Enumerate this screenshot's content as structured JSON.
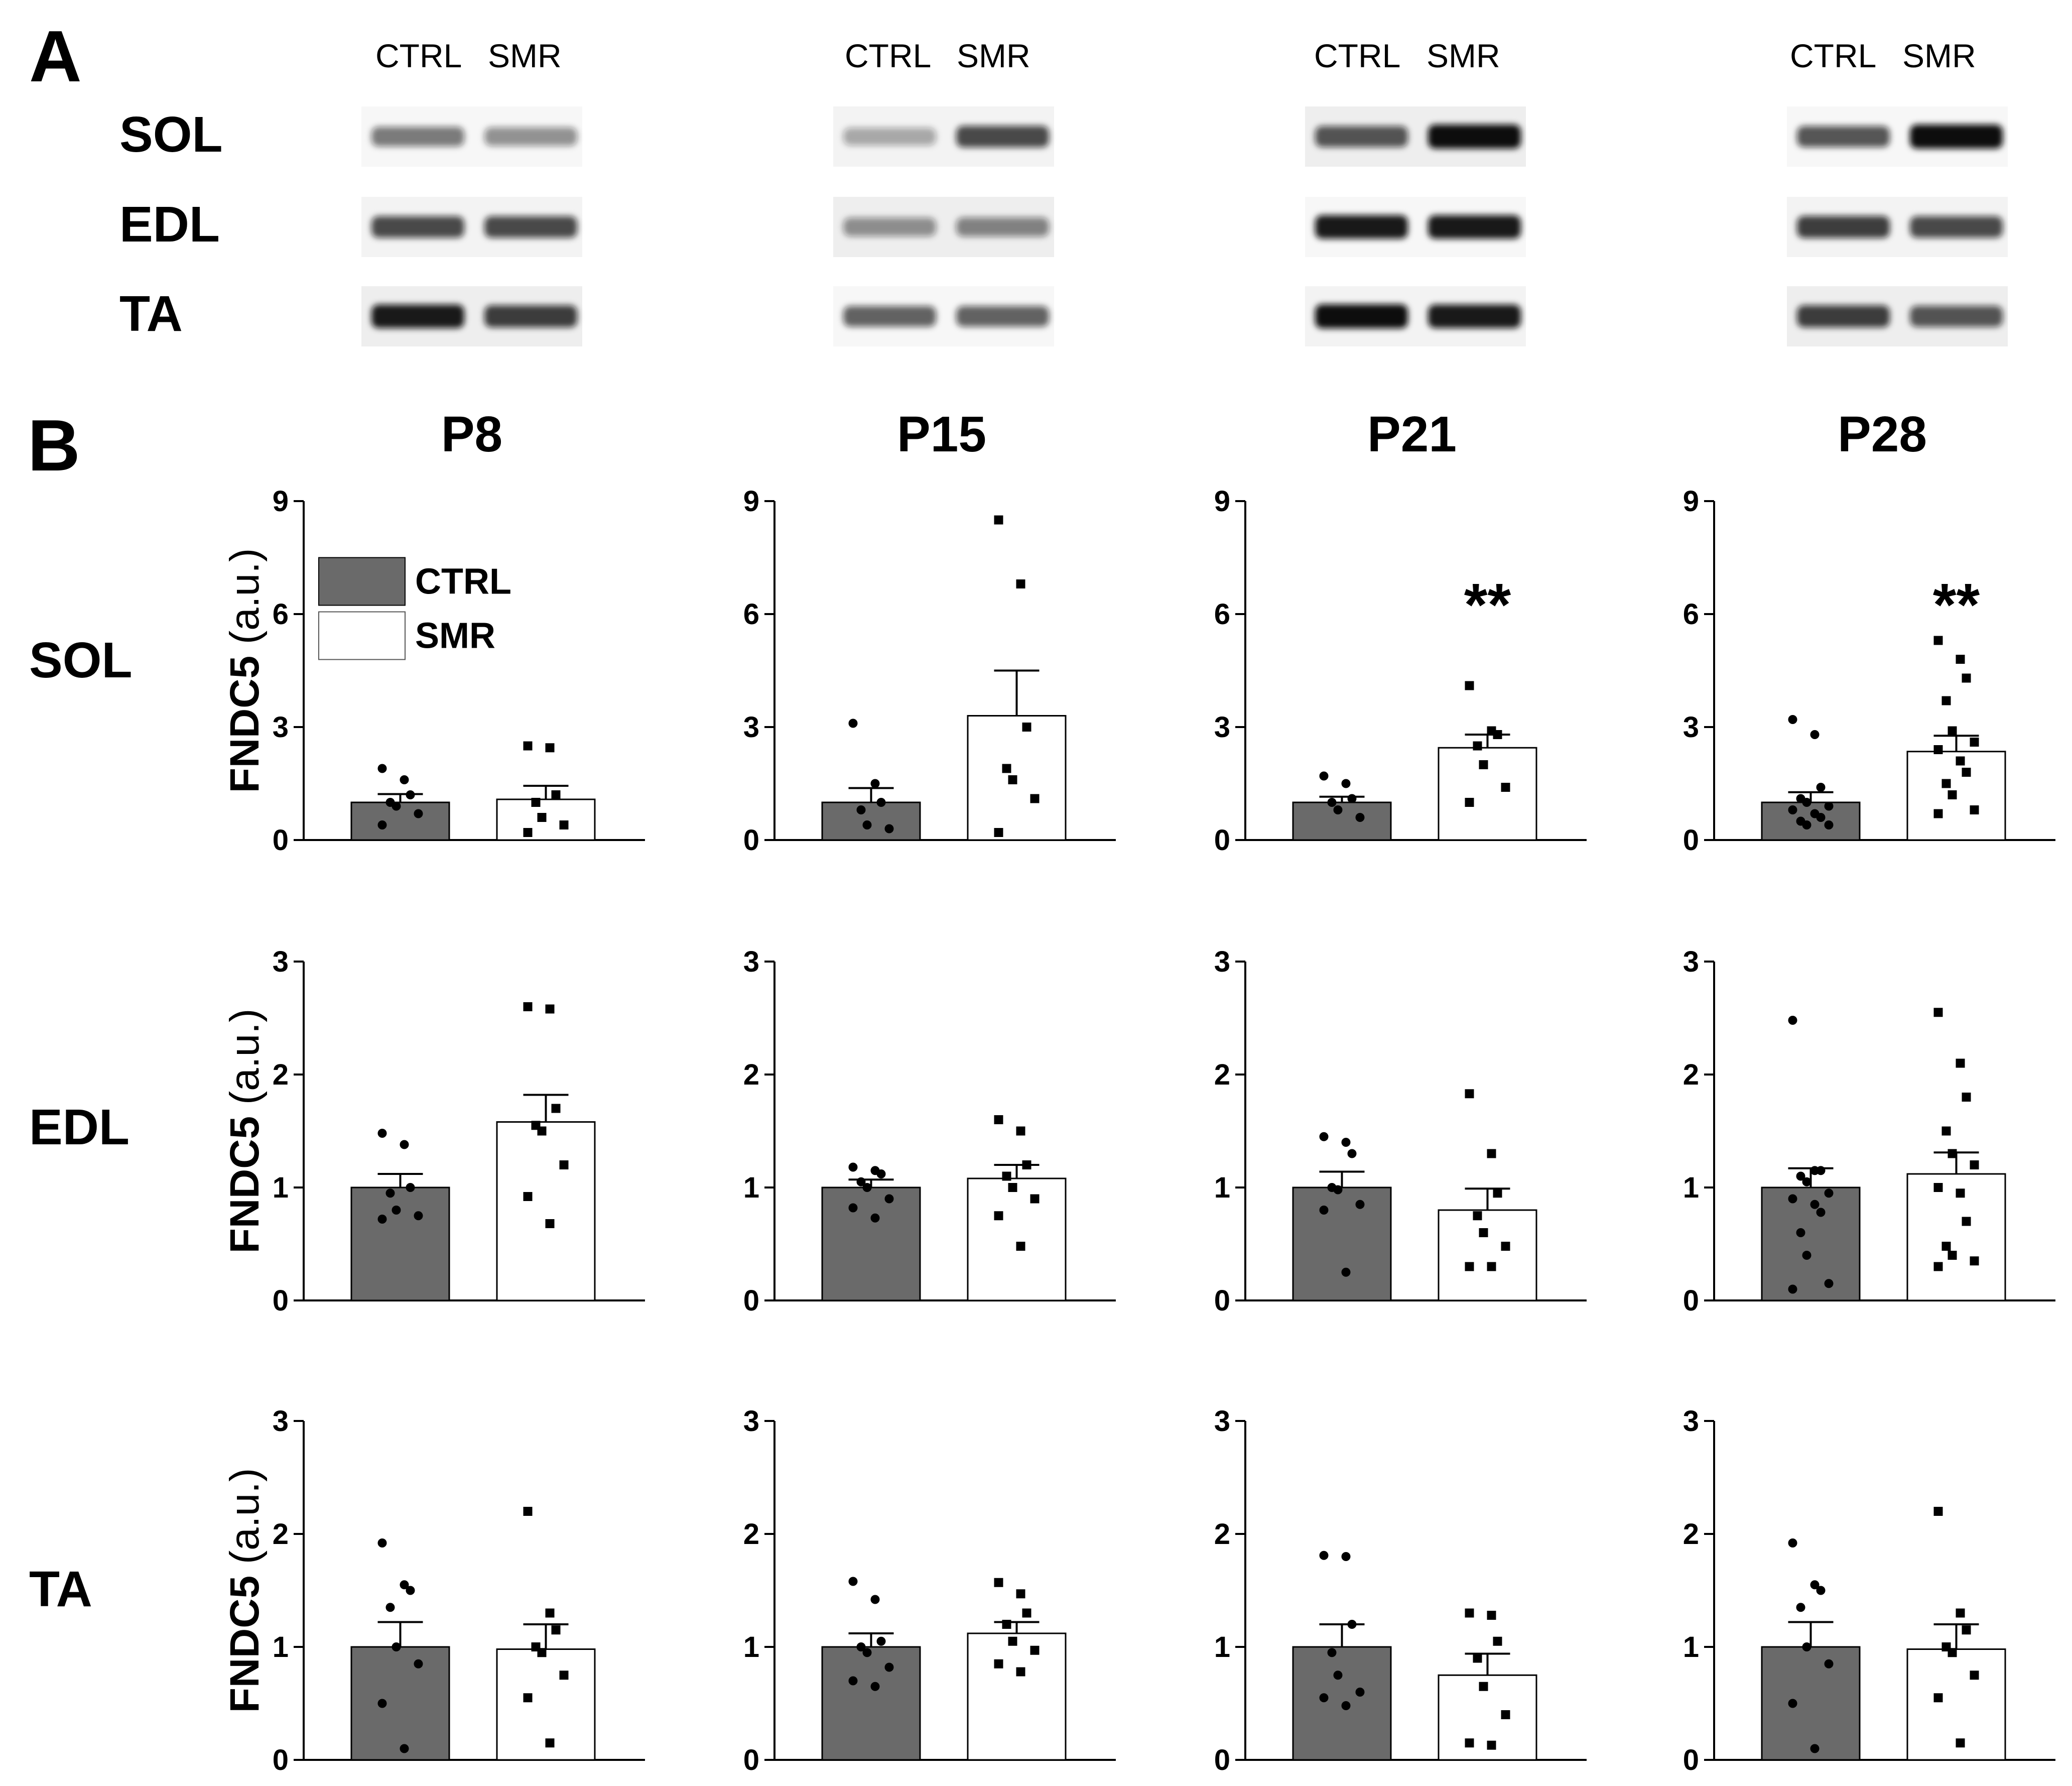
{
  "panel_labels": {
    "a": "A",
    "b": "B"
  },
  "western_blot": {
    "lane_labels": [
      "CTRL",
      "SMR"
    ],
    "muscle_rows": [
      "SOL",
      "EDL",
      "TA"
    ],
    "panels": [
      {
        "timepoint": "P8",
        "intensity": {
          "SOL": [
            0.55,
            0.45
          ],
          "EDL": [
            0.75,
            0.75
          ],
          "TA": [
            0.95,
            0.8
          ]
        }
      },
      {
        "timepoint": "P15",
        "intensity": {
          "SOL": [
            0.35,
            0.75
          ],
          "EDL": [
            0.45,
            0.5
          ],
          "TA": [
            0.65,
            0.65
          ]
        }
      },
      {
        "timepoint": "P21",
        "intensity": {
          "SOL": [
            0.7,
            1.0
          ],
          "EDL": [
            0.95,
            0.95
          ],
          "TA": [
            1.0,
            0.95
          ]
        }
      },
      {
        "timepoint": "P28",
        "intensity": {
          "SOL": [
            0.7,
            1.0
          ],
          "EDL": [
            0.8,
            0.75
          ],
          "TA": [
            0.8,
            0.7
          ]
        }
      }
    ]
  },
  "colors": {
    "ctrl_fill": "#6a6a6a",
    "smr_fill": "#ffffff",
    "axis": "#000000",
    "band": "#111111"
  },
  "chart_data": [
    {
      "type": "bar",
      "muscle": "SOL",
      "timepoint": "P8",
      "title": "P8",
      "ylabel": "FNDC5 (a.u.)",
      "ylim": [
        0,
        9
      ],
      "yticks": [
        0,
        3,
        6,
        9
      ],
      "categories": [
        "CTRL",
        "SMR"
      ],
      "series": [
        {
          "name": "CTRL",
          "mean": 1.0,
          "sem": 0.22,
          "points": [
            1.9,
            1.6,
            1.2,
            1.0,
            0.9,
            0.7,
            0.4
          ]
        },
        {
          "name": "SMR",
          "mean": 1.08,
          "sem": 0.36,
          "points": [
            2.5,
            2.45,
            1.2,
            1.0,
            0.6,
            0.4,
            0.2
          ]
        }
      ],
      "significance": "",
      "legend": [
        "CTRL",
        "SMR"
      ]
    },
    {
      "type": "bar",
      "muscle": "SOL",
      "timepoint": "P15",
      "title": "P15",
      "ylabel": "",
      "ylim": [
        0,
        9
      ],
      "yticks": [
        0,
        3,
        6,
        9
      ],
      "categories": [
        "CTRL",
        "SMR"
      ],
      "series": [
        {
          "name": "CTRL",
          "mean": 1.0,
          "sem": 0.38,
          "points": [
            3.1,
            1.5,
            1.0,
            0.8,
            0.4,
            0.3
          ]
        },
        {
          "name": "SMR",
          "mean": 3.3,
          "sem": 1.2,
          "points": [
            8.5,
            6.8,
            3.0,
            1.9,
            1.6,
            1.1,
            0.2
          ]
        }
      ],
      "significance": ""
    },
    {
      "type": "bar",
      "muscle": "SOL",
      "timepoint": "P21",
      "title": "P21",
      "ylabel": "",
      "ylim": [
        0,
        9
      ],
      "yticks": [
        0,
        3,
        6,
        9
      ],
      "categories": [
        "CTRL",
        "SMR"
      ],
      "series": [
        {
          "name": "CTRL",
          "mean": 1.0,
          "sem": 0.15,
          "points": [
            1.7,
            1.5,
            1.1,
            1.0,
            0.8,
            0.6
          ]
        },
        {
          "name": "SMR",
          "mean": 2.45,
          "sem": 0.35,
          "points": [
            4.1,
            2.9,
            2.8,
            2.5,
            2.0,
            1.4,
            1.0
          ]
        }
      ],
      "significance": "**"
    },
    {
      "type": "bar",
      "muscle": "SOL",
      "timepoint": "P28",
      "title": "P28",
      "ylabel": "",
      "ylim": [
        0,
        9
      ],
      "yticks": [
        0,
        3,
        6,
        9
      ],
      "categories": [
        "CTRL",
        "SMR"
      ],
      "series": [
        {
          "name": "CTRL",
          "mean": 1.0,
          "sem": 0.27,
          "points": [
            3.2,
            2.8,
            1.4,
            1.1,
            1.0,
            0.9,
            0.8,
            0.7,
            0.6,
            0.5,
            0.4,
            0.4
          ]
        },
        {
          "name": "SMR",
          "mean": 2.35,
          "sem": 0.42,
          "points": [
            5.3,
            4.8,
            4.3,
            3.7,
            2.9,
            2.6,
            2.4,
            2.1,
            1.8,
            1.5,
            1.2,
            0.8,
            0.7
          ]
        }
      ],
      "significance": "**"
    },
    {
      "type": "bar",
      "muscle": "EDL",
      "timepoint": "P8",
      "title": "",
      "ylabel": "FNDC5 (a.u.)",
      "ylim": [
        0,
        3
      ],
      "yticks": [
        0,
        1,
        2,
        3
      ],
      "categories": [
        "CTRL",
        "SMR"
      ],
      "series": [
        {
          "name": "CTRL",
          "mean": 1.0,
          "sem": 0.12,
          "points": [
            1.48,
            1.38,
            1.0,
            0.95,
            0.8,
            0.75,
            0.72
          ]
        },
        {
          "name": "SMR",
          "mean": 1.58,
          "sem": 0.24,
          "points": [
            2.6,
            2.58,
            1.7,
            1.55,
            1.5,
            1.2,
            0.92,
            0.68
          ]
        }
      ],
      "significance": ""
    },
    {
      "type": "bar",
      "muscle": "EDL",
      "timepoint": "P15",
      "title": "",
      "ylabel": "",
      "ylim": [
        0,
        3
      ],
      "yticks": [
        0,
        1,
        2,
        3
      ],
      "categories": [
        "CTRL",
        "SMR"
      ],
      "series": [
        {
          "name": "CTRL",
          "mean": 1.0,
          "sem": 0.07,
          "points": [
            1.18,
            1.15,
            1.12,
            1.05,
            1.0,
            0.9,
            0.82,
            0.73
          ]
        },
        {
          "name": "SMR",
          "mean": 1.08,
          "sem": 0.12,
          "points": [
            1.6,
            1.5,
            1.2,
            1.1,
            1.0,
            0.9,
            0.75,
            0.48
          ]
        }
      ],
      "significance": ""
    },
    {
      "type": "bar",
      "muscle": "EDL",
      "timepoint": "P21",
      "title": "",
      "ylabel": "",
      "ylim": [
        0,
        3
      ],
      "yticks": [
        0,
        1,
        2,
        3
      ],
      "categories": [
        "CTRL",
        "SMR"
      ],
      "series": [
        {
          "name": "CTRL",
          "mean": 1.0,
          "sem": 0.14,
          "points": [
            1.45,
            1.4,
            1.3,
            1.0,
            0.98,
            0.85,
            0.8,
            0.25
          ]
        },
        {
          "name": "SMR",
          "mean": 0.8,
          "sem": 0.19,
          "points": [
            1.83,
            1.3,
            0.95,
            0.75,
            0.6,
            0.48,
            0.3,
            0.3
          ]
        }
      ],
      "significance": ""
    },
    {
      "type": "bar",
      "muscle": "EDL",
      "timepoint": "P28",
      "title": "",
      "ylabel": "",
      "ylim": [
        0,
        3
      ],
      "yticks": [
        0,
        1,
        2,
        3
      ],
      "categories": [
        "CTRL",
        "SMR"
      ],
      "series": [
        {
          "name": "CTRL",
          "mean": 1.0,
          "sem": 0.17,
          "points": [
            2.48,
            1.15,
            1.15,
            1.1,
            1.05,
            0.95,
            0.9,
            0.85,
            0.78,
            0.6,
            0.4,
            0.15,
            0.1
          ]
        },
        {
          "name": "SMR",
          "mean": 1.12,
          "sem": 0.19,
          "points": [
            2.55,
            2.1,
            1.8,
            1.5,
            1.3,
            1.2,
            1.0,
            0.95,
            0.7,
            0.48,
            0.4,
            0.35,
            0.3
          ]
        }
      ],
      "significance": ""
    },
    {
      "type": "bar",
      "muscle": "TA",
      "timepoint": "P8",
      "title": "",
      "ylabel": "FNDC5 (a.u.)",
      "ylim": [
        0,
        3
      ],
      "yticks": [
        0,
        1,
        2,
        3
      ],
      "categories": [
        "CTRL",
        "SMR"
      ],
      "series": [
        {
          "name": "CTRL",
          "mean": 1.0,
          "sem": 0.22,
          "points": [
            1.92,
            1.55,
            1.5,
            1.35,
            1.0,
            0.85,
            0.5,
            0.1
          ]
        },
        {
          "name": "SMR",
          "mean": 0.98,
          "sem": 0.22,
          "points": [
            2.2,
            1.3,
            1.15,
            1.0,
            0.95,
            0.75,
            0.55,
            0.15
          ]
        }
      ],
      "significance": ""
    },
    {
      "type": "bar",
      "muscle": "TA",
      "timepoint": "P15",
      "title": "",
      "ylabel": "",
      "ylim": [
        0,
        3
      ],
      "yticks": [
        0,
        1,
        2,
        3
      ],
      "categories": [
        "CTRL",
        "SMR"
      ],
      "series": [
        {
          "name": "CTRL",
          "mean": 1.0,
          "sem": 0.12,
          "points": [
            1.58,
            1.42,
            1.05,
            1.0,
            0.95,
            0.82,
            0.7,
            0.65
          ]
        },
        {
          "name": "SMR",
          "mean": 1.12,
          "sem": 0.1,
          "points": [
            1.57,
            1.47,
            1.3,
            1.2,
            1.05,
            0.97,
            0.85,
            0.78
          ]
        }
      ],
      "significance": ""
    },
    {
      "type": "bar",
      "muscle": "TA",
      "timepoint": "P21",
      "title": "",
      "ylabel": "",
      "ylim": [
        0,
        3
      ],
      "yticks": [
        0,
        1,
        2,
        3
      ],
      "categories": [
        "CTRL",
        "SMR"
      ],
      "series": [
        {
          "name": "CTRL",
          "mean": 1.0,
          "sem": 0.2,
          "points": [
            1.81,
            1.8,
            1.2,
            0.95,
            0.75,
            0.6,
            0.55,
            0.48
          ]
        },
        {
          "name": "SMR",
          "mean": 0.75,
          "sem": 0.19,
          "points": [
            1.3,
            1.28,
            1.05,
            0.9,
            0.65,
            0.4,
            0.15,
            0.13
          ]
        }
      ],
      "significance": ""
    },
    {
      "type": "bar",
      "muscle": "TA",
      "timepoint": "P28",
      "title": "",
      "ylabel": "",
      "ylim": [
        0,
        3
      ],
      "yticks": [
        0,
        1,
        2,
        3
      ],
      "categories": [
        "CTRL",
        "SMR"
      ],
      "series": [
        {
          "name": "CTRL",
          "mean": 1.0,
          "sem": 0.22,
          "points": [
            1.92,
            1.55,
            1.5,
            1.35,
            1.0,
            0.85,
            0.5,
            0.1
          ]
        },
        {
          "name": "SMR",
          "mean": 0.98,
          "sem": 0.22,
          "points": [
            2.2,
            1.3,
            1.15,
            1.0,
            0.95,
            0.75,
            0.55,
            0.15
          ]
        }
      ],
      "significance": ""
    }
  ]
}
